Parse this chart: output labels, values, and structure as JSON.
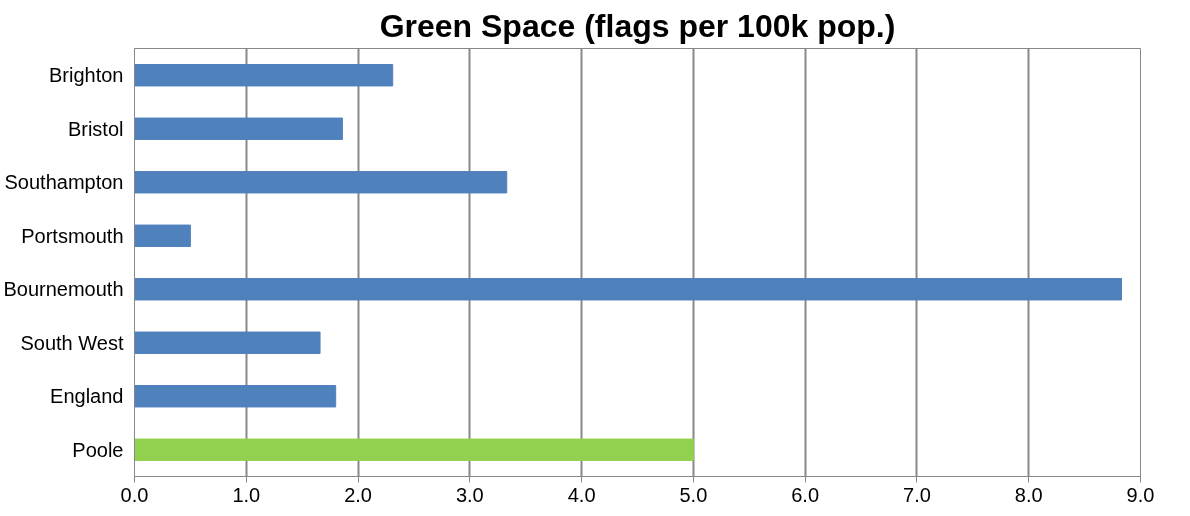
{
  "chart_data": {
    "type": "bar",
    "orientation": "horizontal",
    "title": "Green Space (flags per 100k pop.)",
    "categories": [
      "Brighton",
      "Bristol",
      "Southampton",
      "Portsmouth",
      "Bournemouth",
      "South West",
      "England",
      "Poole"
    ],
    "values": [
      2.31,
      1.86,
      3.33,
      0.5,
      8.83,
      1.66,
      1.8,
      5.0
    ],
    "colors": [
      "#4f81bd",
      "#4f81bd",
      "#4f81bd",
      "#4f81bd",
      "#4f81bd",
      "#4f81bd",
      "#4f81bd",
      "#92d050"
    ],
    "xlim": [
      0,
      9
    ],
    "xticks": [
      {
        "value": 0,
        "label": "0.0"
      },
      {
        "value": 1,
        "label": "1.0"
      },
      {
        "value": 2,
        "label": "2.0"
      },
      {
        "value": 3,
        "label": "3.0"
      },
      {
        "value": 4,
        "label": "4.0"
      },
      {
        "value": 5,
        "label": "5.0"
      },
      {
        "value": 6,
        "label": "6.0"
      },
      {
        "value": 7,
        "label": "7.0"
      },
      {
        "value": 8,
        "label": "8.0"
      },
      {
        "value": 9,
        "label": "9.0"
      }
    ],
    "grid": "x"
  }
}
